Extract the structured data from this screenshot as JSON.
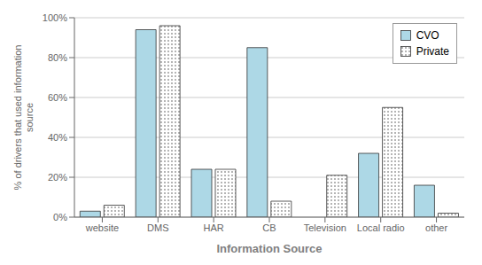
{
  "chart_data": {
    "type": "bar",
    "categories": [
      "website",
      "DMS",
      "HAR",
      "CB",
      "Television",
      "Local radio",
      "other"
    ],
    "series": [
      {
        "name": "CVO",
        "color": "#ADD8E6",
        "values": [
          3,
          94,
          24,
          85,
          0,
          32,
          16
        ]
      },
      {
        "name": "Private",
        "color": "white",
        "values": [
          6,
          96,
          24,
          8,
          21,
          55,
          2
        ]
      }
    ],
    "xlabel": "Information Source",
    "ylabel": "% of drivers that used information\nsource",
    "ylim": [
      0,
      100
    ],
    "yticks": [
      {
        "value": 0,
        "label": "0%"
      },
      {
        "value": 20,
        "label": "20%"
      },
      {
        "value": 40,
        "label": "40%"
      },
      {
        "value": 60,
        "label": "60%"
      },
      {
        "value": 80,
        "label": "80%"
      },
      {
        "value": 100,
        "label": "100%"
      }
    ],
    "grid": true,
    "legend": "upper right"
  }
}
